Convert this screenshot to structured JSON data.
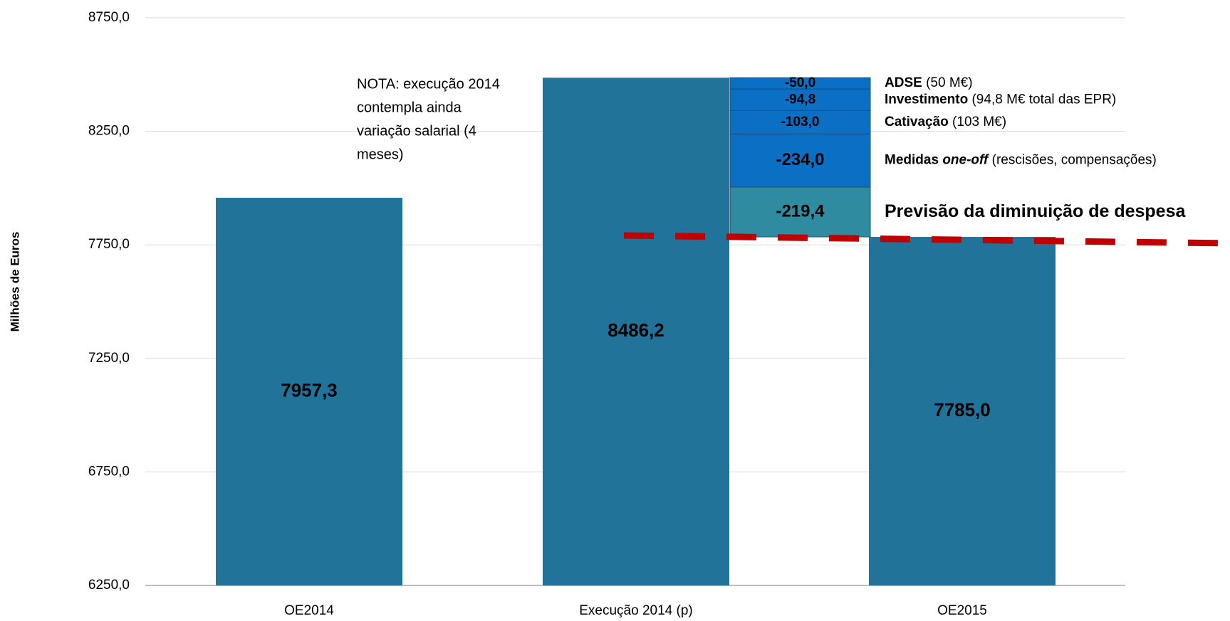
{
  "chart_data": {
    "type": "waterfall",
    "y_label": "Milhões de Euros",
    "categories": [
      "OE2014",
      "Execução 2014 (p)",
      "OE2015"
    ],
    "values": [
      7957.3,
      8486.2,
      7785.0
    ],
    "value_labels": [
      "7957,3",
      "8486,2",
      "7785,0"
    ],
    "color": "#21739a",
    "steps": [
      {
        "value": -50.0,
        "label": "-50,0",
        "color": "#0b6fc4",
        "name": [
          {
            "text": "ADSE",
            "bold": true
          },
          {
            "text": "(50 M€)"
          }
        ]
      },
      {
        "value": -94.8,
        "label": "-94,8",
        "color": "#0b6fc4",
        "name": [
          {
            "text": "Investimento",
            "bold": true
          },
          {
            "text": "(94,8 M€ total das EPR)"
          }
        ]
      },
      {
        "value": -103.0,
        "label": "-103,0",
        "color": "#0b6fc4",
        "name": [
          {
            "text": "Cativação",
            "bold": true
          },
          {
            "text": "(103 M€)"
          }
        ]
      },
      {
        "value": -234.0,
        "label": "-234,0",
        "color": "#0b6fc4",
        "name": [
          {
            "text": "Medidas",
            "bold": true
          },
          {
            "text": "one-off",
            "bold": true,
            "italic": true
          },
          {
            "text": "(rescisões, compensações)"
          }
        ]
      },
      {
        "value": -219.4,
        "label": "-219,4",
        "color": "#2e8ba0",
        "name": [
          {
            "text": "Previsão da diminuição de despesa",
            "bold": true,
            "large": true
          }
        ]
      }
    ],
    "annotation": [
      "NOTA: execução 2014",
      "contempla ainda",
      "variação salarial (4",
      "meses)"
    ],
    "ylim": [
      6250,
      8750
    ],
    "yticks": [
      {
        "value": 6250,
        "label": "6250,0"
      },
      {
        "value": 6750,
        "label": "6750,0"
      },
      {
        "value": 7250,
        "label": "7250,0"
      },
      {
        "value": 7750,
        "label": "7750,0"
      },
      {
        "value": 8250,
        "label": "8250,0"
      },
      {
        "value": 8750,
        "label": "8750,0"
      }
    ],
    "grid": true
  }
}
